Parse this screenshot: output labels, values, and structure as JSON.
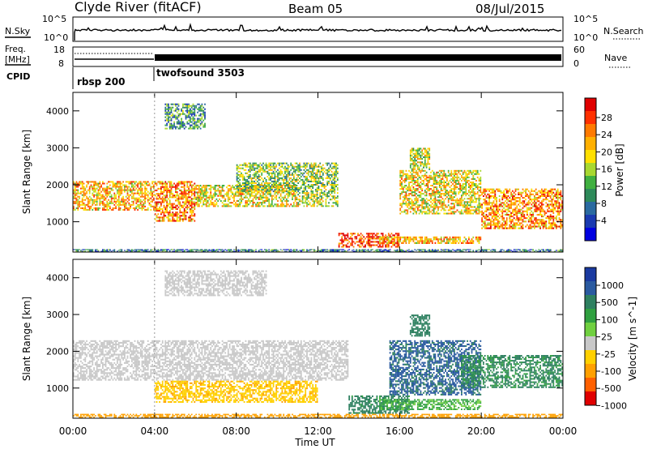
{
  "header": {
    "station": "Clyde River (fitACF)",
    "beam": "Beam 05",
    "date": "08/Jul/2015"
  },
  "noise_panel": {
    "left_label": "N.Sky",
    "right_label": "N.Search",
    "y_ticks_left": [
      "10^5",
      "10^0"
    ],
    "y_ticks_right": [
      "10^5",
      "10^0"
    ]
  },
  "freq_panel": {
    "left_label_1": "Freq.",
    "left_label_2": "[MHz]",
    "right_label": "Nave",
    "y_ticks_left": [
      "18",
      "8"
    ],
    "y_ticks_right": [
      "60",
      "0"
    ]
  },
  "cpid_panel": {
    "label": "CPID",
    "segments": [
      {
        "name": "rbsp 200",
        "start_hour": 0,
        "end_hour": 4
      },
      {
        "name": "twofsound 3503",
        "start_hour": 4,
        "end_hour": 24
      }
    ]
  },
  "x_ticks": [
    "00:00",
    "04:00",
    "08:00",
    "12:00",
    "16:00",
    "20:00",
    "00:00"
  ],
  "x_label": "Time UT",
  "power_colorbar": {
    "label": "Power [dB]",
    "ticks": [
      "28",
      "24",
      "20",
      "16",
      "12",
      "8",
      "4"
    ],
    "colors": [
      "#e00000",
      "#ff3000",
      "#ff7a00",
      "#ffb000",
      "#ffe000",
      "#a8d830",
      "#40b040",
      "#2e8a5a",
      "#2a6aa0",
      "#1a3ab0",
      "#0000e0"
    ]
  },
  "velocity_colorbar": {
    "label": "Velocity [m s^-1]",
    "ticks": [
      "1000",
      "500",
      "100",
      "25",
      "-25",
      "-100",
      "-500",
      "-1000"
    ],
    "colors": [
      "#1a3aa0",
      "#2a5aa0",
      "#2e8060",
      "#30a040",
      "#70d040",
      "#c8c8c8",
      "#ffd000",
      "#ffa000",
      "#ff6000",
      "#e00000"
    ]
  },
  "chart_data": [
    {
      "type": "heatmap",
      "title": "",
      "xlabel": "Time UT",
      "ylabel": "Slant Range [km]",
      "xlim": [
        0,
        24
      ],
      "ylim": [
        180,
        4500
      ],
      "y_ticks": [
        1000,
        2000,
        3000,
        4000
      ],
      "x_ticks_hours": [
        0,
        4,
        8,
        12,
        16,
        20,
        24
      ],
      "quantity": "Power [dB]",
      "colorscale_range": [
        0,
        30
      ],
      "scatter_regions": [
        {
          "t": [
            0.0,
            4.0
          ],
          "r": [
            1300,
            2100
          ],
          "value": 20
        },
        {
          "t": [
            4.0,
            6.0
          ],
          "r": [
            1000,
            2100
          ],
          "value": 22
        },
        {
          "t": [
            6.0,
            11.0
          ],
          "r": [
            1400,
            2000
          ],
          "value": 18
        },
        {
          "t": [
            8.0,
            13.0
          ],
          "r": [
            1800,
            2600
          ],
          "value": 14
        },
        {
          "t": [
            11.0,
            13.0
          ],
          "r": [
            1400,
            1800
          ],
          "value": 16
        },
        {
          "t": [
            13.0,
            16.0
          ],
          "r": [
            300,
            700
          ],
          "value": 26
        },
        {
          "t": [
            15.0,
            20.0
          ],
          "r": [
            400,
            600
          ],
          "value": 20
        },
        {
          "t": [
            16.0,
            20.0
          ],
          "r": [
            1200,
            2400
          ],
          "value": 18
        },
        {
          "t": [
            20.0,
            24.0
          ],
          "r": [
            800,
            1900
          ],
          "value": 22
        },
        {
          "t": [
            0.0,
            24.0
          ],
          "r": [
            190,
            260
          ],
          "value": 8
        },
        {
          "t": [
            4.5,
            6.5
          ],
          "r": [
            3500,
            4200
          ],
          "value": 10
        },
        {
          "t": [
            16.5,
            17.5
          ],
          "r": [
            2400,
            3000
          ],
          "value": 16
        }
      ]
    },
    {
      "type": "heatmap",
      "title": "",
      "xlabel": "Time UT",
      "ylabel": "Slant Range [km]",
      "xlim": [
        0,
        24
      ],
      "ylim": [
        180,
        4500
      ],
      "y_ticks": [
        1000,
        2000,
        3000,
        4000
      ],
      "x_ticks_hours": [
        0,
        4,
        8,
        12,
        16,
        20,
        24
      ],
      "quantity": "Velocity [m s^-1]",
      "colorscale_range": [
        -1000,
        1000
      ],
      "scatter_regions": [
        {
          "t": [
            0.0,
            13.5
          ],
          "r": [
            1200,
            2300
          ],
          "value": 0
        },
        {
          "t": [
            13.5,
            16.5
          ],
          "r": [
            300,
            800
          ],
          "value": 150
        },
        {
          "t": [
            15.5,
            20.0
          ],
          "r": [
            800,
            2300
          ],
          "value": 600
        },
        {
          "t": [
            19.0,
            24.0
          ],
          "r": [
            1000,
            1900
          ],
          "value": 120
        },
        {
          "t": [
            15.0,
            20.0
          ],
          "r": [
            400,
            700
          ],
          "value": 60
        },
        {
          "t": [
            0.0,
            24.0
          ],
          "r": [
            190,
            300
          ],
          "value": -200
        },
        {
          "t": [
            4.0,
            12.0
          ],
          "r": [
            600,
            1200
          ],
          "value": -80
        },
        {
          "t": [
            16.5,
            17.5
          ],
          "r": [
            2400,
            3000
          ],
          "value": 300
        },
        {
          "t": [
            4.5,
            9.5
          ],
          "r": [
            3500,
            4200
          ],
          "value": 0
        }
      ]
    }
  ]
}
